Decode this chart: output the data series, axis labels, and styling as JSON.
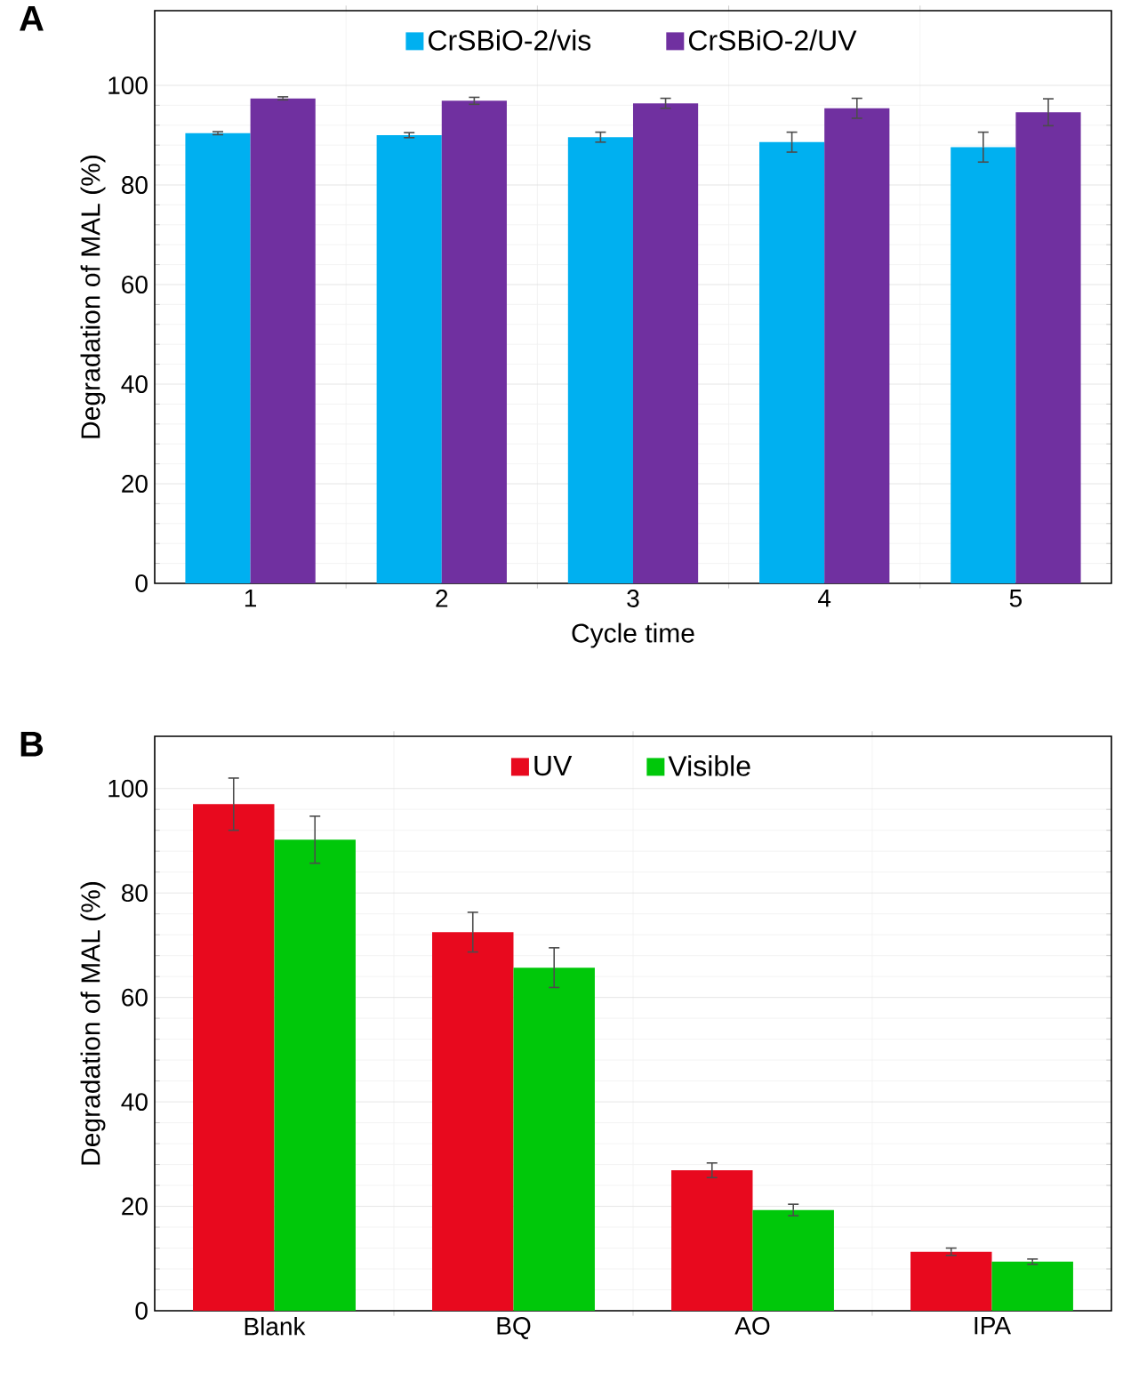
{
  "chart_data": [
    {
      "type": "bar",
      "title": "A",
      "xlabel": "Cycle time",
      "ylabel": "Degradation of MAL (%)",
      "categories": [
        "1",
        "2",
        "3",
        "4",
        "5"
      ],
      "ylim": [
        0,
        115
      ],
      "yticks": [
        0,
        20,
        40,
        60,
        80,
        100
      ],
      "grid": true,
      "legend": "top",
      "series": [
        {
          "name": "CrSBiO-2/vis",
          "color": "#00b0f0",
          "values": [
            90.4,
            90.0,
            89.6,
            88.6,
            87.6
          ],
          "errors": [
            0.3,
            0.5,
            1,
            2,
            3
          ]
        },
        {
          "name": "CrSBiO-2/UV",
          "color": "#7030a0",
          "values": [
            97.4,
            96.9,
            96.4,
            95.4,
            94.6
          ],
          "errors": [
            0.3,
            0.7,
            1,
            2,
            2.7
          ]
        }
      ]
    },
    {
      "type": "bar",
      "title": "B",
      "ylabel": "Degradation of MAL (%)",
      "categories": [
        "Blank",
        "BQ",
        "AO",
        "IPA"
      ],
      "ylim": [
        0,
        110
      ],
      "yticks": [
        0,
        20,
        40,
        60,
        80,
        100
      ],
      "grid": true,
      "legend": "top",
      "series": [
        {
          "name": "UV",
          "color": "#e8091e",
          "values": [
            97,
            72.5,
            26.9,
            11.3
          ],
          "errors": [
            5,
            3.8,
            1.4,
            0.7
          ]
        },
        {
          "name": "Visible",
          "color": "#00c80a",
          "values": [
            90.2,
            65.7,
            19.3,
            9.4
          ],
          "errors": [
            4.5,
            3.8,
            1.1,
            0.5
          ]
        }
      ]
    }
  ]
}
